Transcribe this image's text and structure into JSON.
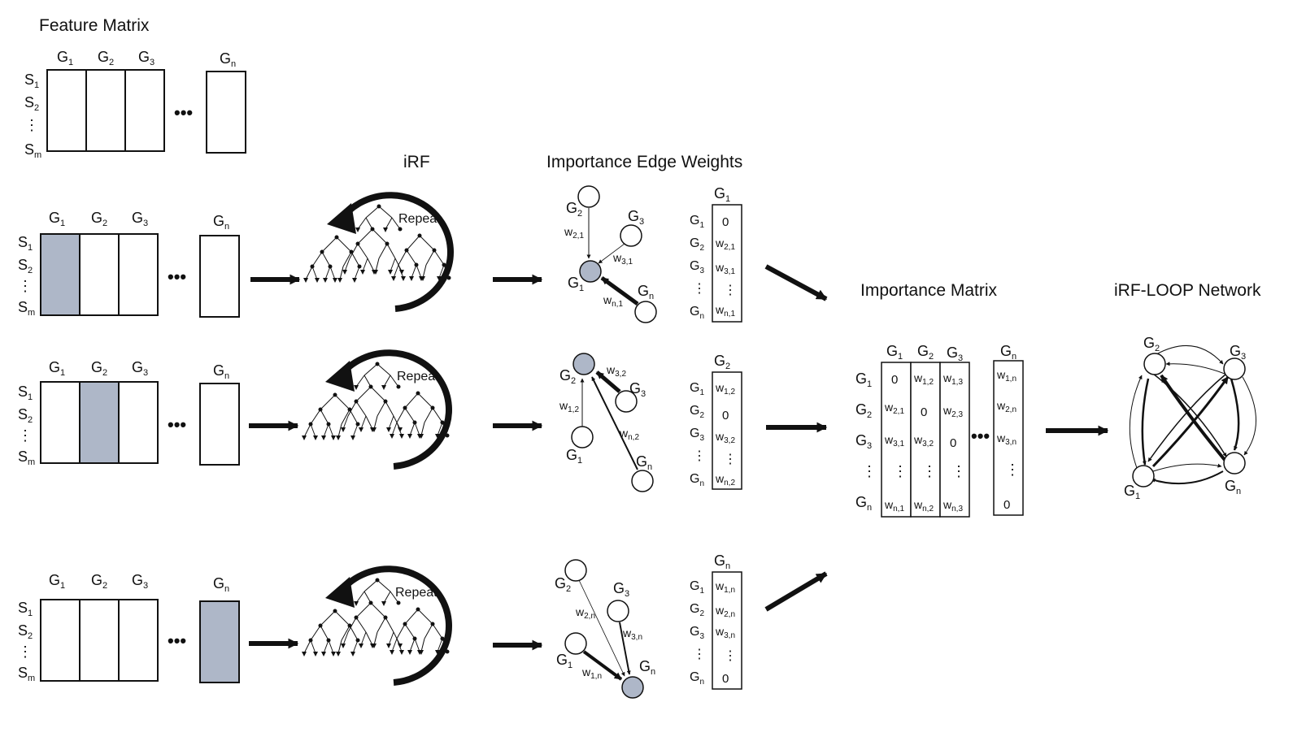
{
  "titles": {
    "feature_matrix": "Feature Matrix",
    "irf": "iRF",
    "importance_edge_weights": "Importance Edge Weights",
    "importance_matrix": "Importance Matrix",
    "network": "iRF-LOOP Network"
  },
  "repeat_label": "Repeat",
  "ellipsis": "•••",
  "vdots": "⋮",
  "gene": "G",
  "sample": "S",
  "weight": "w",
  "zero": "0",
  "subs": {
    "one": "1",
    "two": "2",
    "three": "3",
    "n": "n",
    "m": "m",
    "w21": "2,1",
    "w31": "3,1",
    "wn1": "n,1",
    "w12": "1,2",
    "w32": "3,2",
    "wn2": "n,2",
    "w13": "1,3",
    "w23": "2,3",
    "wn3": "n,3",
    "w1n": "1,n",
    "w2n": "2,n",
    "w3n": "3,n"
  },
  "colors": {
    "highlight": "#aeb7c8",
    "ink": "#111111"
  }
}
